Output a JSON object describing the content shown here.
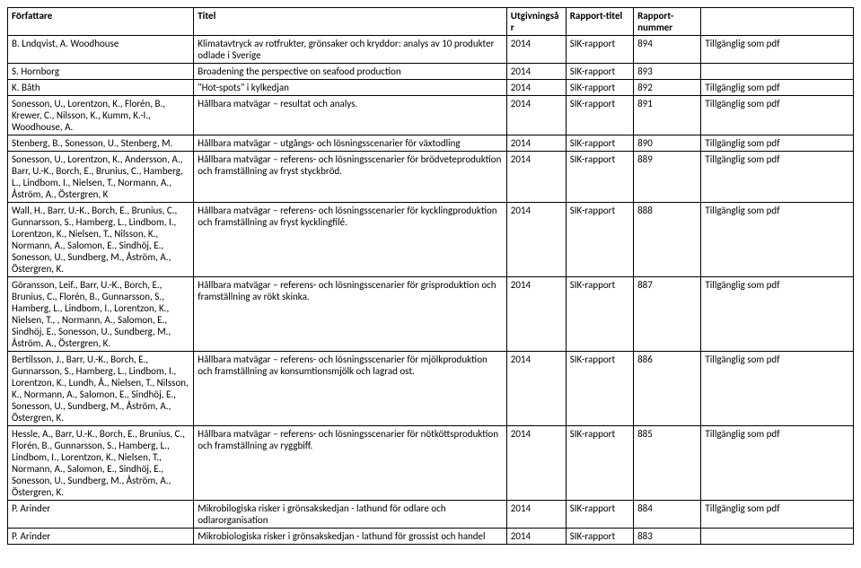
{
  "headers": {
    "author": "Författare",
    "title": "Titel",
    "year": "Utgivningsår",
    "report_title": "Rapport-titel",
    "report_number_l1": "Rapport-",
    "report_number_l2": "nummer",
    "pdf": ""
  },
  "rows": [
    {
      "author": "B. Lndqvist, A. Woodhouse",
      "title": "Klimatavtryck av rotfrukter, grönsaker och kryddor: analys av 10 produkter odlade i Sverige",
      "year": "2014",
      "rt": "SIK-rapport",
      "rn": "894",
      "pdf": "Tillgänglig som pdf"
    },
    {
      "author": "S. Hornborg",
      "title": "Broadening the perspective on seafood production",
      "year": "2014",
      "rt": "SIK-rapport",
      "rn": "893",
      "pdf": ""
    },
    {
      "author": "K. Båth",
      "title": "\"Hot-spots\" i kylkedjan",
      "year": "2014",
      "rt": "SIK-rapport",
      "rn": "892",
      "pdf": "Tillgänglig som pdf"
    },
    {
      "author": "Sonesson, U., Lorentzon, K., Florén, B., Krewer, C., Nilsson, K., Kumm, K.-I., Woodhouse, A.",
      "title": "Hållbara matvägar – resultat och analys.",
      "year": "2014",
      "rt": "SIK-rapport",
      "rn": "891",
      "pdf": "Tillgänglig som pdf"
    },
    {
      "author": "Stenberg, B., Sonesson, U., Stenberg, M.",
      "title": "Hållbara matvägar – utgångs- och lösningsscenarier för växtodling",
      "year": "2014",
      "rt": "SIK-rapport",
      "rn": "890",
      "pdf": "Tillgänglig som pdf"
    },
    {
      "author": "Sonesson, U., Lorentzon, K., Andersson, A., Barr, U.-K., Borch, E., Brunius, C., Hamberg, L., Lindbom, I., Nielsen, T., Normann, A., Åström, A., Östergren, K",
      "title": "Hållbara matvägar – referens- och lösningsscenarier för brödveteproduktion och framställning av fryst styckbröd.",
      "year": "2014",
      "rt": "SIK-rapport",
      "rn": "889",
      "pdf": "Tillgänglig som pdf"
    },
    {
      "author": "Wall, H., Barr, U.-K., Borch, E., Brunius, C., Gunnarsson, S., Hamberg, L., Lindbom, I., Lorentzon, K., Nielsen, T., Nilsson, K., Normann, A., Salomon, E., Sindhöj, E., Sonesson, U., Sundberg, M., Åström, A., Östergren, K.",
      "title": "Hållbara matvägar – referens- och lösningsscenarier för kycklingproduktion och framställning av fryst kycklingfilé.",
      "year": "2014",
      "rt": "SIK-rapport",
      "rn": "888",
      "pdf": "Tillgänglig som pdf"
    },
    {
      "author": "Göransson, Leif., Barr, U.-K., Borch, E., Brunius, C., Florén, B., Gunnarsson, S., Hamberg, L., Lindbom, I., Lorentzon, K., Nielsen, T., , Normann, A., Salomon, E., Sindhöj, E., Sonesson, U., Sundberg, M., Åström, A., Östergren, K.",
      "title": "Hållbara matvägar – referens- och lösningsscenarier för grisproduktion och framställning av rökt skinka.",
      "year": "2014",
      "rt": "SIK-rapport",
      "rn": "887",
      "pdf": "Tillgänglig som pdf"
    },
    {
      "author": "Bertilsson, J., Barr, U.-K., Borch, E., Gunnarsson, S., Hamberg, L., Lindbom, I., Lorentzon, K., Lundh, Å., Nielsen, T., Nilsson, K., Normann, A., Salomon, E., Sindhöj, E., Sonesson, U., Sundberg, M., Åström, A., Östergren, K.",
      "title": "Hållbara matvägar – referens- och lösningsscenarier för mjölkproduktion och framställning av konsumtionsmjölk och lagrad ost.",
      "year": "2014",
      "rt": "SIK-rapport",
      "rn": "886",
      "pdf": "Tillgänglig som pdf"
    },
    {
      "author": "Hessle, A., Barr, U.-K., Borch, E., Brunius, C., Florén, B., Gunnarsson, S., Hamberg, L., Lindbom, I., Lorentzon, K., Nielsen, T., Normann, A., Salomon, E., Sindhöj, E., Sonesson, U., Sundberg, M., Åström, A., Östergren, K.",
      "title": "Hållbara matvägar – referens- och lösningsscenarier för nötköttsproduktion och framställning av ryggbiff.",
      "year": "2014",
      "rt": "SIK-rapport",
      "rn": "885",
      "pdf": "Tillgänglig som pdf"
    },
    {
      "author": "P. Arinder",
      "title": "Mikrobilogiska risker i grönsakskedjan - lathund för odlare och odlarorganisation",
      "year": "2014",
      "rt": "SIK-rapport",
      "rn": "884",
      "pdf": "Tillgänglig som pdf"
    },
    {
      "author": "P. Arinder",
      "title": "Mikrobiologiska risker i grönsakskedjan - lathund för grossist och handel",
      "year": "2014",
      "rt": "SIK-rapport",
      "rn": "883",
      "pdf": ""
    }
  ]
}
